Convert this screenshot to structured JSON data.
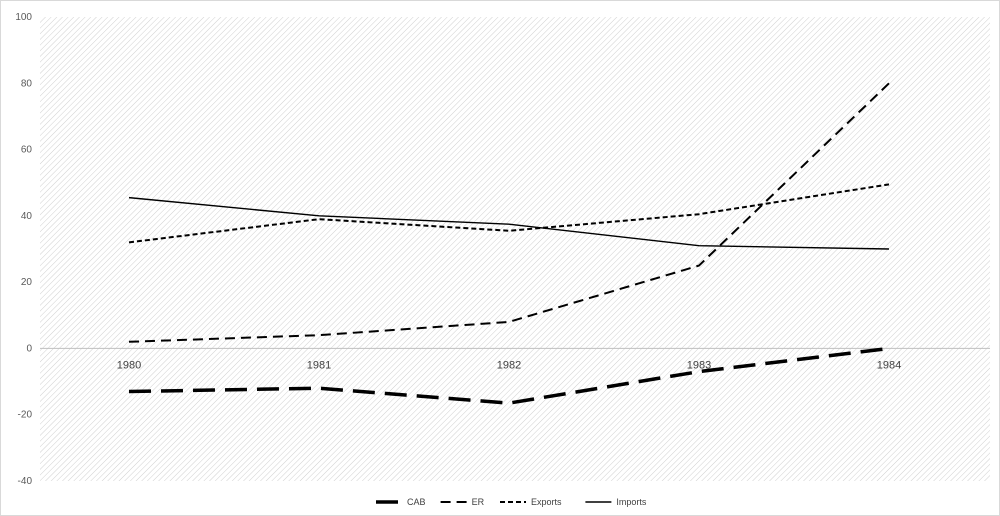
{
  "chart_data": {
    "type": "line",
    "categories": [
      "1980",
      "1981",
      "1982",
      "1983",
      "1984"
    ],
    "ylim": [
      -40,
      100
    ],
    "yticks": [
      -40,
      -20,
      0,
      20,
      40,
      60,
      80,
      100
    ],
    "grid": false,
    "background": "hatched",
    "legend_position": "bottom",
    "series": [
      {
        "name": "CAB",
        "values": [
          -13,
          -12,
          -16.5,
          -7,
          0
        ],
        "color": "#000000",
        "style": "long-dash-thick"
      },
      {
        "name": "ER",
        "values": [
          2,
          4,
          8,
          25,
          80
        ],
        "color": "#000000",
        "style": "dash"
      },
      {
        "name": "Exports",
        "values": [
          32,
          39,
          35.5,
          40.5,
          49.5
        ],
        "color": "#000000",
        "style": "short-dash"
      },
      {
        "name": "Imports",
        "values": [
          45.5,
          40,
          37.5,
          31,
          30
        ],
        "color": "#000000",
        "style": "solid"
      }
    ]
  }
}
